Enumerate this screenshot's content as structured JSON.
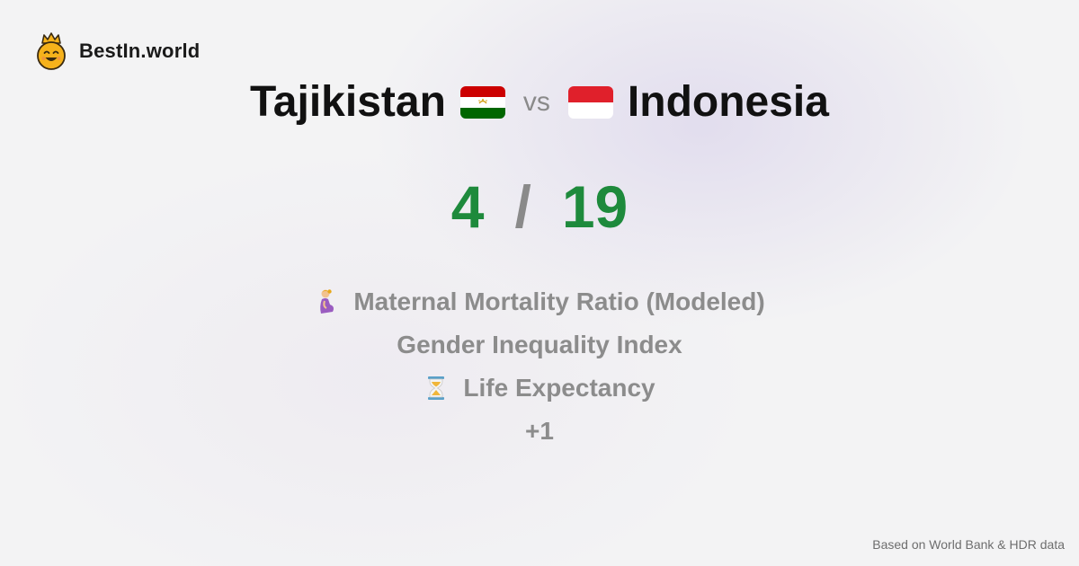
{
  "brand": {
    "name": "BestIn.world",
    "logo_icon": "crowned-smiley-icon"
  },
  "comparison": {
    "left_country": "Tajikistan",
    "left_flag_icon": "tajikistan-flag-icon",
    "vs_label": "vs",
    "right_country": "Indonesia",
    "right_flag_icon": "indonesia-flag-icon"
  },
  "score": {
    "left": "4",
    "separator": "/",
    "right": "19"
  },
  "metrics": [
    {
      "label": "Maternal Mortality Ratio (Modeled)",
      "icon": "pregnant-woman-icon"
    },
    {
      "label": "Gender Inequality Index"
    },
    {
      "label": "Life Expectancy",
      "icon": "hourglass-icon"
    },
    {
      "label": "+1"
    }
  ],
  "footer": {
    "source": "Based on World Bank & HDR data"
  },
  "colors": {
    "score": "#1e8a3c",
    "muted": "#8c8c8c",
    "text": "#111111"
  }
}
